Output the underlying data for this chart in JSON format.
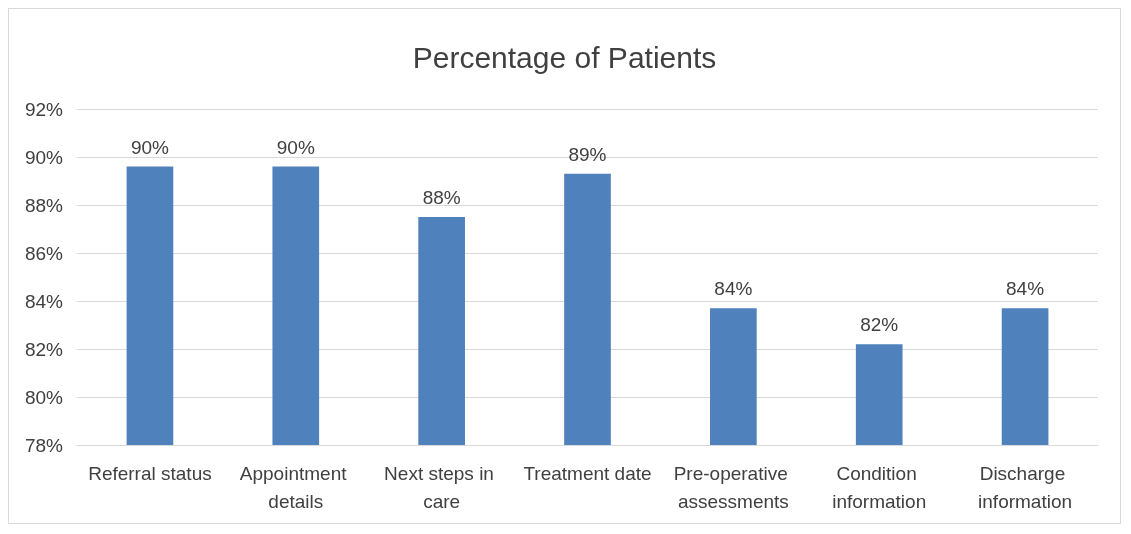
{
  "chart_data": {
    "type": "bar",
    "title": "Percentage of Patients",
    "categories": [
      "Referral status",
      "Appointment details",
      "Next steps in care",
      "Treatment date",
      "Pre-operative assessments",
      "Condition information",
      "Discharge information"
    ],
    "values": [
      89.6,
      89.6,
      87.5,
      89.3,
      83.7,
      82.2,
      83.7
    ],
    "value_labels": [
      "90%",
      "90%",
      "88%",
      "89%",
      "84%",
      "82%",
      "84%"
    ],
    "color": "#4f81bd",
    "ylim": [
      78,
      92
    ],
    "yticks": [
      {
        "value": 78,
        "label": "78%"
      },
      {
        "value": 80,
        "label": "80%"
      },
      {
        "value": 82,
        "label": "82%"
      },
      {
        "value": 84,
        "label": "84%"
      },
      {
        "value": 86,
        "label": "86%"
      },
      {
        "value": 88,
        "label": "88%"
      },
      {
        "value": 90,
        "label": "90%"
      },
      {
        "value": 92,
        "label": "92%"
      }
    ],
    "grid": "y"
  }
}
